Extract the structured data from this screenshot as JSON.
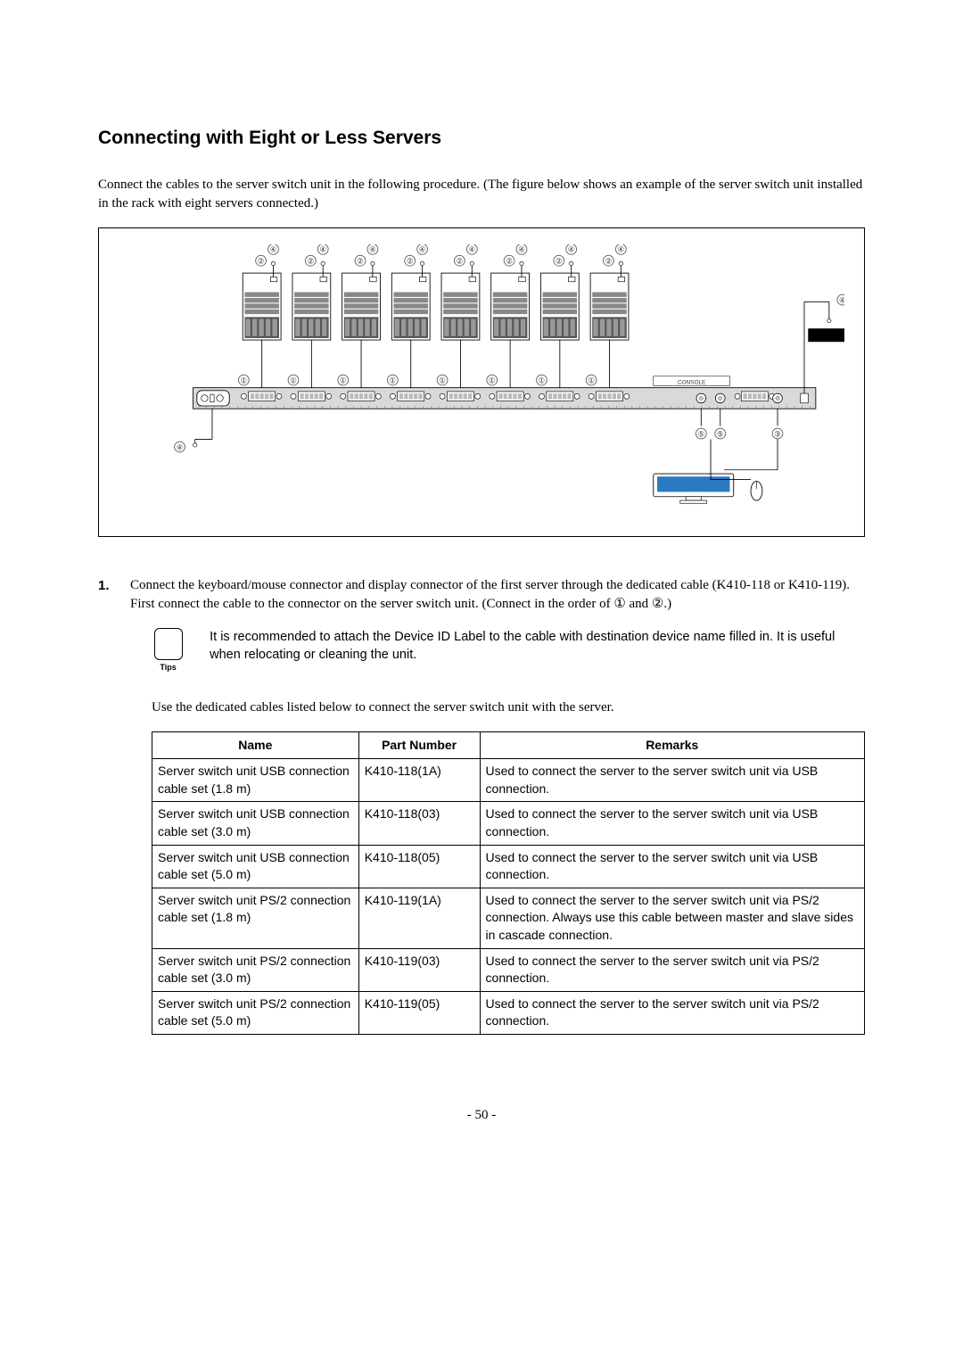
{
  "heading": "Connecting with Eight or Less Servers",
  "intro": "Connect the cables to the server switch unit in the following procedure.    (The figure below shows an example of the server switch unit installed in the rack with eight servers connected.)",
  "step1_num": "1.",
  "step1_text": "Connect the keyboard/mouse connector and display connector of the first server through the dedicated cable (K410-118 or K410-119).    First connect the cable to the connector on the server switch unit.    (Connect in the order of ① and ②.)",
  "tips_label": "Tips",
  "tips_text": "It is recommended to attach the Device ID Label to the cable with destination device name filled in.    It is useful when relocating or cleaning the unit.",
  "desc2": "Use the dedicated cables listed below to connect the server switch unit with the server.",
  "table": {
    "headers": [
      "Name",
      "Part Number",
      "Remarks"
    ],
    "rows": [
      [
        "Server switch unit USB connection cable set (1.8 m)",
        "K410-118(1A)",
        "Used to connect the server to the server switch unit via USB connection."
      ],
      [
        "Server switch unit USB connection cable set (3.0 m)",
        "K410-118(03)",
        "Used to connect the server to the server switch unit via USB connection."
      ],
      [
        "Server switch unit USB connection cable set (5.0 m)",
        "K410-118(05)",
        "Used to connect the server to the server switch unit via USB connection."
      ],
      [
        "Server switch unit PS/2 connection cable set (1.8 m)",
        "K410-119(1A)",
        "Used to connect the server to the server switch unit via PS/2 connection.   Always use this cable between master and slave sides in cascade connection."
      ],
      [
        "Server switch unit PS/2 connection cable set (3.0 m)",
        "K410-119(03)",
        "Used to connect the server to the server switch unit via PS/2 connection."
      ],
      [
        "Server switch unit PS/2 connection cable set (5.0 m)",
        "K410-119(05)",
        "Used to connect the server to the server switch unit via PS/2 connection."
      ]
    ]
  },
  "page_num": "- 50 -",
  "diagram": {
    "num_servers": 8,
    "labels": {
      "1": "①",
      "2": "②",
      "3": "③",
      "4": "④",
      "5": "⑤"
    },
    "console_label": "CONSOLE",
    "colors": {
      "server_body": "#ffffff",
      "server_slot": "#888888",
      "server_slot_dark": "#555555",
      "switch_bar_bg": "#a8a8a8",
      "monitor": "#2b79c2",
      "line": "#000000",
      "label_circle": "#555555"
    }
  }
}
